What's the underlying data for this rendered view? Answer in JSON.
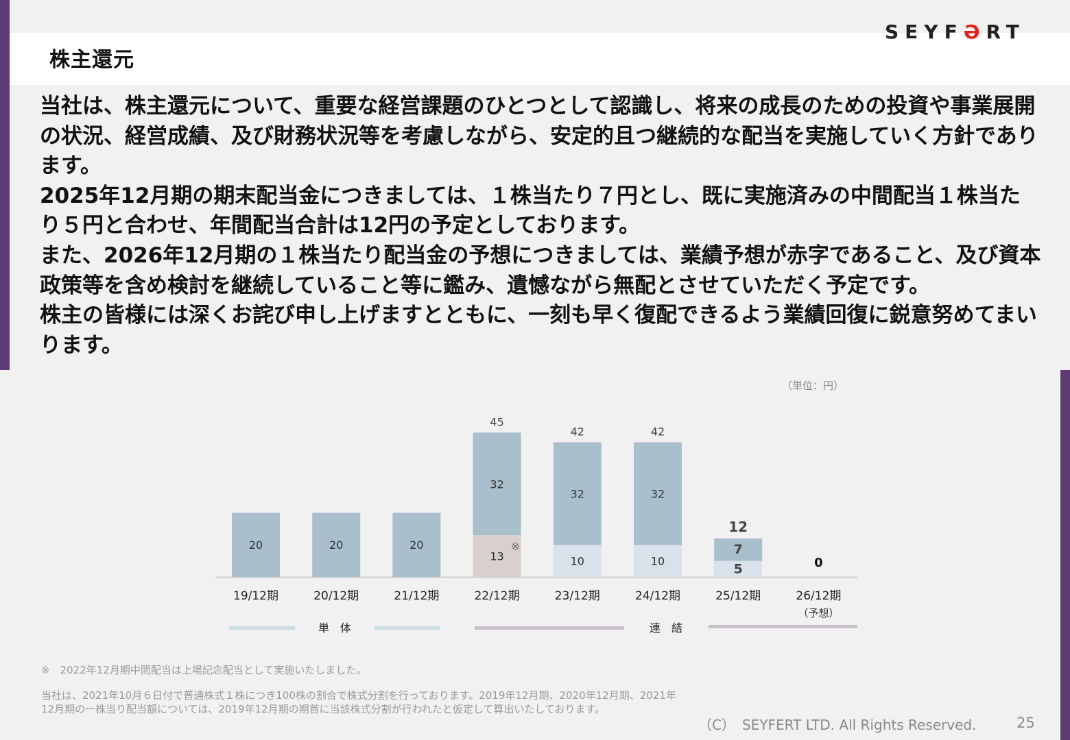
{
  "header": {
    "title": "株主還元",
    "logo_text": "SEYFERT",
    "logo_accent_color": "#e2231a",
    "accent_bar_color": "#5b3b72"
  },
  "body_paragraphs": [
    "当社は、株主還元について、重要な経営課題のひとつとして認識し、将来の成長のための投資や事業展開の状況、経営成績、及び財務状況等を考慮しながら、安定的且つ継続的な配当を実施していく方針であります。",
    "2025年12月期の期末配当金につきましては、１株当たり７円とし、既に実施済みの中間配当１株当たり５円と合わせ、年間配当合計は12円の予定としております。",
    "また、2026年12月期の１株当たり配当金の予想につきましては、業績予想が赤字であること、及び資本政策等を含め検討を継続していること等に鑑み、遺憾ながら無配とさせていただく予定です。",
    "株主の皆様には深くお詫び申し上げますとともに、一刻も早く復配できるよう業績回復に鋭意努めてまいります。"
  ],
  "chart_data": {
    "type": "bar",
    "stacked": true,
    "unit_label": "（単位：円）",
    "categories": [
      "19/12期",
      "20/12期",
      "21/12期",
      "22/12期",
      "23/12期",
      "24/12期",
      "25/12期",
      "26/12期"
    ],
    "category_sublabels": [
      "",
      "",
      "",
      "",
      "",
      "",
      "",
      "（予想）"
    ],
    "totals": [
      20,
      20,
      20,
      45,
      42,
      42,
      12,
      0
    ],
    "series": [
      {
        "values": [
          0,
          0,
          0,
          13,
          10,
          10,
          5,
          0
        ],
        "colors": [
          "#dde3ea",
          "#dde3ea",
          "#dde3ea",
          "#d8d0cc",
          "#d9e1ea",
          "#d9e1ea",
          "#d9e1ea",
          "#d9e1ea"
        ]
      },
      {
        "values": [
          20,
          20,
          20,
          32,
          32,
          32,
          7,
          0
        ],
        "color": "#a9bfcb"
      }
    ],
    "special_mark": {
      "category": "22/12期",
      "symbol": "※"
    },
    "bold_categories": [
      "25/12期",
      "26/12期"
    ],
    "groups": [
      {
        "label": "単　体",
        "categories": [
          "19/12期",
          "20/12期",
          "21/12期"
        ],
        "color": "#cddbe2"
      },
      {
        "label": "連　結",
        "categories": [
          "22/12期",
          "23/12期",
          "24/12期",
          "25/12期",
          "26/12期"
        ],
        "color": "#c9c0ca"
      }
    ],
    "ylim": [
      0,
      50
    ]
  },
  "notes": {
    "note1": "※　2022年12月期中間配当は上場記念配当として実施いたしました。",
    "note2": "当社は、2021年10月６日付で普通株式１株につき100株の割合で株式分割を行っております。2019年12月期、2020年12月期、2021年12月期の一株当り配当額については、2019年12月期の期首に当該株式分割が行われたと仮定して算出いたしております。"
  },
  "footer": {
    "copyright": "（C）　SEYFERT LTD. All Rights Reserved.",
    "page_number": "25"
  }
}
